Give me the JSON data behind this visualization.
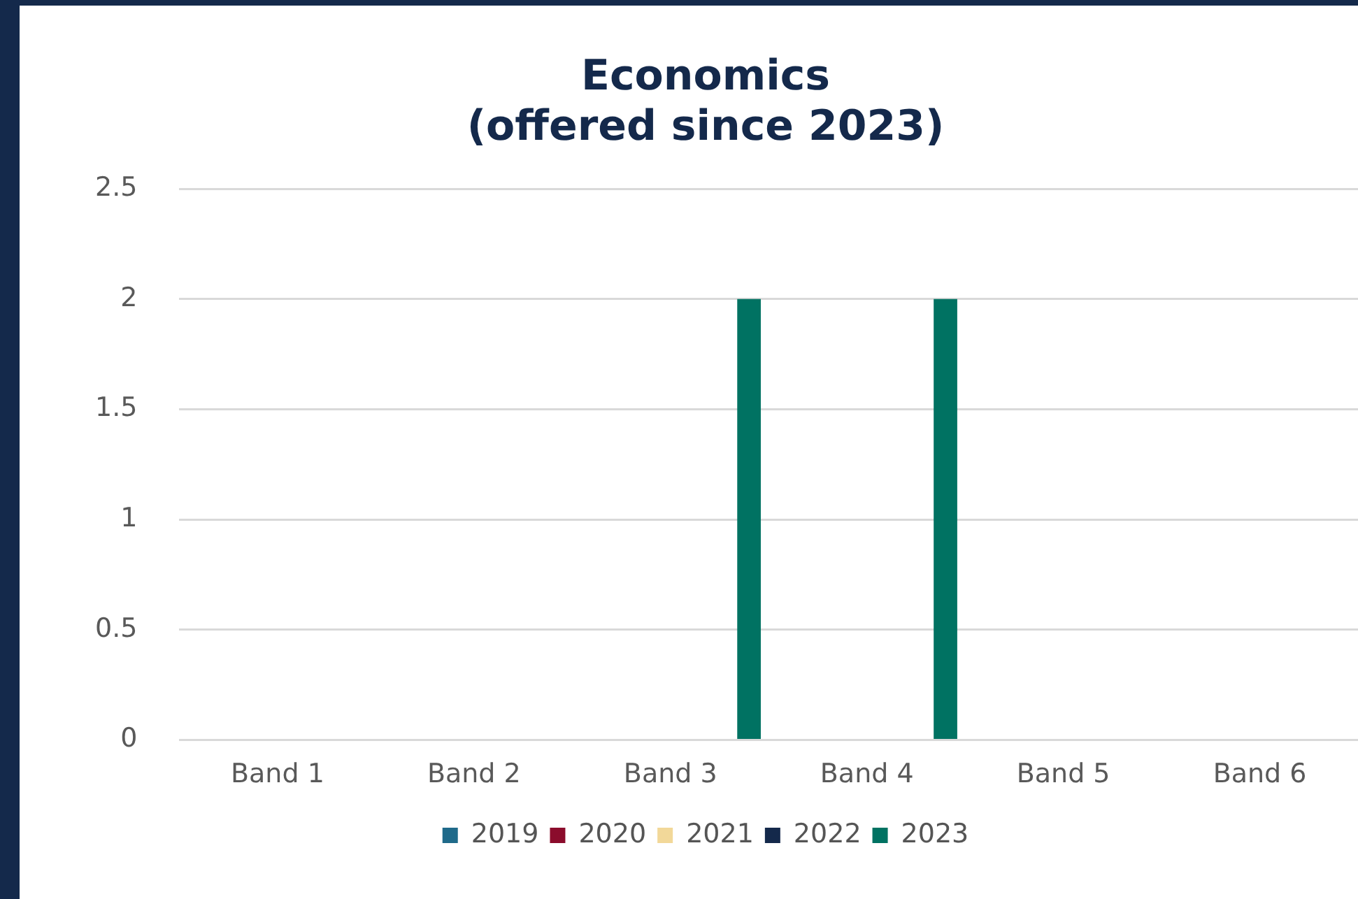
{
  "chart_data": {
    "type": "bar",
    "title": "Economics\n(offered since 2023)",
    "categories": [
      "Band 1",
      "Band 2",
      "Band 3",
      "Band 4",
      "Band 5",
      "Band 6"
    ],
    "series": [
      {
        "name": "2019",
        "color": "#1f6a8a",
        "values": [
          0,
          0,
          0,
          0,
          0,
          0
        ]
      },
      {
        "name": "2020",
        "color": "#8b0c2c",
        "values": [
          0,
          0,
          0,
          0,
          0,
          0
        ]
      },
      {
        "name": "2021",
        "color": "#f2d899",
        "values": [
          0,
          0,
          0,
          0,
          0,
          0
        ]
      },
      {
        "name": "2022",
        "color": "#14294b",
        "values": [
          0,
          0,
          0,
          0,
          0,
          0
        ]
      },
      {
        "name": "2023",
        "color": "#007262",
        "values": [
          0,
          0,
          2,
          2,
          0,
          0
        ]
      }
    ],
    "ylim": [
      0,
      2.5
    ],
    "yticks": [
      0,
      0.5,
      1,
      1.5,
      2,
      2.5
    ],
    "grid": "y",
    "legend": "bottom"
  }
}
